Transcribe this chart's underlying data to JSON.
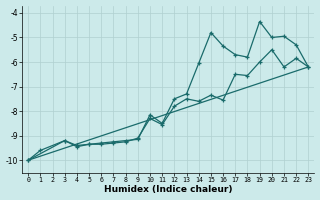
{
  "xlabel": "Humidex (Indice chaleur)",
  "bg_color": "#cceaea",
  "grid_color": "#b0d0d0",
  "line_color": "#1a6b6b",
  "xlim": [
    -0.5,
    23.5
  ],
  "ylim": [
    -10.5,
    -3.7
  ],
  "xticks": [
    0,
    1,
    2,
    3,
    4,
    5,
    6,
    7,
    8,
    9,
    10,
    11,
    12,
    13,
    14,
    15,
    16,
    17,
    18,
    19,
    20,
    21,
    22,
    23
  ],
  "yticks": [
    -10,
    -9,
    -8,
    -7,
    -6,
    -5,
    -4
  ],
  "line1_x": [
    0,
    1,
    3,
    4,
    5,
    6,
    7,
    8,
    9,
    10,
    11,
    12,
    13,
    14,
    15,
    16,
    17,
    18,
    19,
    20,
    21,
    22,
    23
  ],
  "line1_y": [
    -10,
    -9.6,
    -9.2,
    -9.4,
    -9.35,
    -9.35,
    -9.3,
    -9.25,
    -9.1,
    -8.3,
    -8.55,
    -7.8,
    -7.5,
    -7.6,
    -7.35,
    -7.55,
    -6.5,
    -6.55,
    -6.0,
    -5.5,
    -6.2,
    -5.85,
    -6.2
  ],
  "line2_x": [
    0,
    3,
    4,
    5,
    6,
    7,
    8,
    9,
    10,
    11,
    12,
    13,
    14,
    15,
    16,
    17,
    18,
    19,
    20,
    21,
    22,
    23
  ],
  "line2_y": [
    -10,
    -9.2,
    -9.45,
    -9.35,
    -9.3,
    -9.25,
    -9.2,
    -9.15,
    -8.15,
    -8.5,
    -7.5,
    -7.3,
    -6.05,
    -4.8,
    -5.35,
    -5.7,
    -5.8,
    -4.35,
    -5.0,
    -4.95,
    -5.3,
    -6.2
  ],
  "line3_x": [
    0,
    23
  ],
  "line3_y": [
    -10,
    -6.2
  ]
}
